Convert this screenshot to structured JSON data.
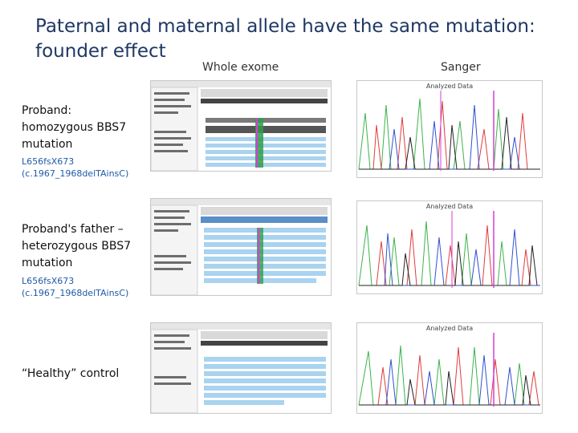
{
  "title": "Paternal and maternal allele have the same mutation: founder effect",
  "columns": {
    "whole_exome": "Whole exome",
    "sanger": "Sanger"
  },
  "rows": [
    {
      "label_lines": [
        "Proband:",
        "homozygous BBS7",
        "mutation"
      ],
      "variant_lines": [
        "L656fsX673",
        "(c.1967_1968delTAinsC)"
      ],
      "sanger_header": "Analyzed Data"
    },
    {
      "label_lines": [
        "Proband's father –",
        "heterozygous BBS7",
        "mutation"
      ],
      "variant_lines": [
        "L656fsX673",
        "(c.1967_1968delTAinsC)"
      ],
      "sanger_header": "Analyzed Data"
    },
    {
      "label_lines": [
        "“Healthy” control"
      ],
      "variant_lines": [],
      "sanger_header": "Analyzed Data"
    }
  ],
  "colors": {
    "title": "#1f3864",
    "variant_text": "#1f5aa6",
    "read_fill": "#a9d3ef",
    "marker": "#d63fd6"
  }
}
